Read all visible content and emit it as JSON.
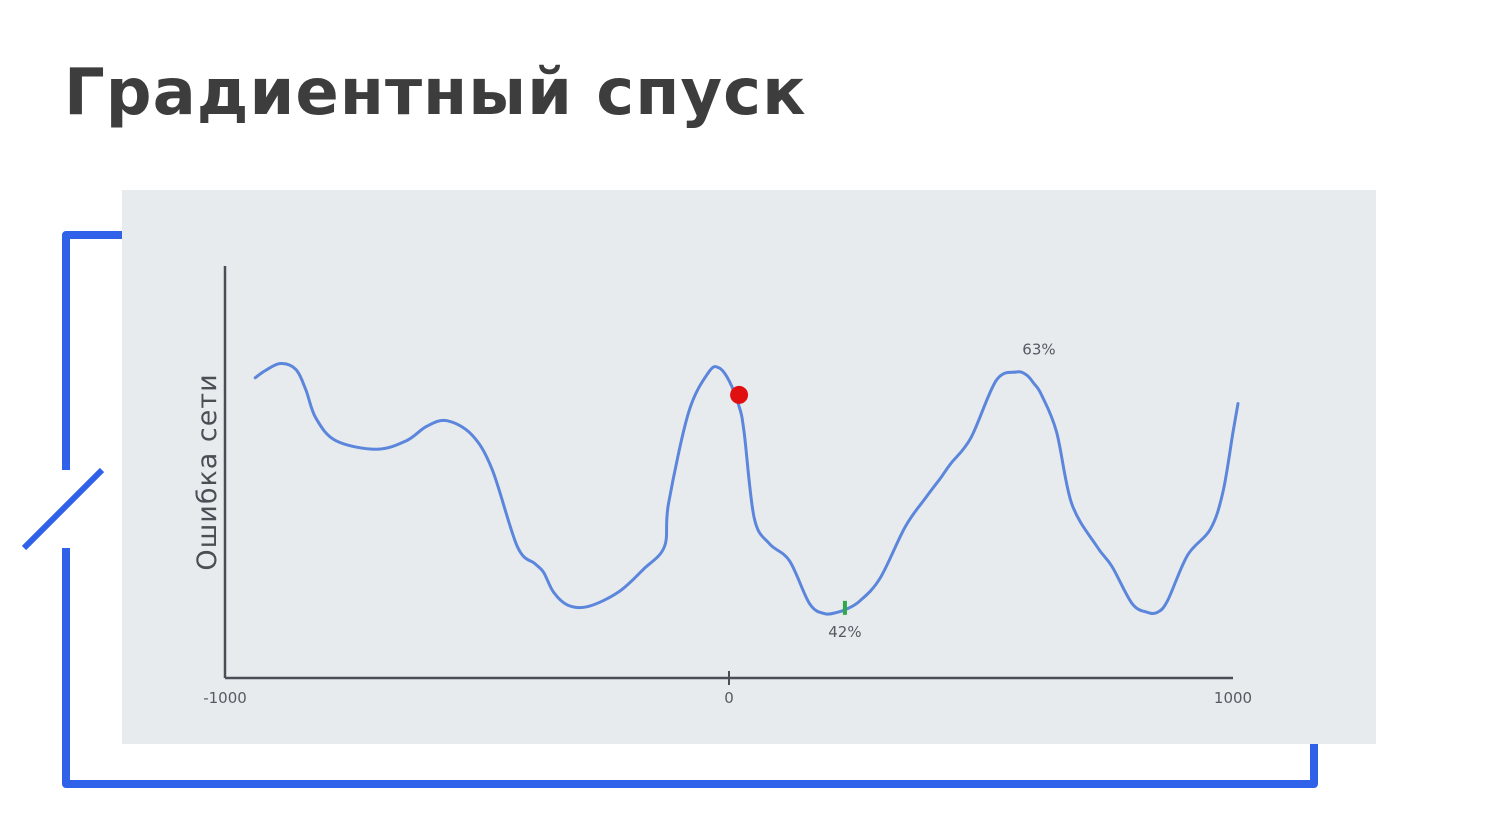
{
  "slide": {
    "title": "Градиентный спуск"
  },
  "colors": {
    "frame": "#2f62e9",
    "panel_bg": "#e8ebee",
    "curve": "#5b86dc",
    "axis": "#4a4f56",
    "current_point": "#e01010",
    "minimum_marker": "#2ea84a",
    "title_text": "#3d3d3d"
  },
  "chart_data": {
    "type": "line",
    "title": "",
    "xlabel": "",
    "ylabel": "Ошибка сети",
    "xlim": [
      -1000,
      1000
    ],
    "ylim": [
      0,
      100
    ],
    "grid": false,
    "x_ticks": [
      {
        "value": -1000,
        "label": "-1000"
      },
      {
        "value": 0,
        "label": "0"
      },
      {
        "value": 1000,
        "label": "1000"
      }
    ],
    "series": [
      {
        "x": [
          -940,
          -920,
          -890,
          -860,
          -840,
          -820,
          -780,
          -700,
          -640,
          -600,
          -560,
          -510,
          -470,
          -420,
          -385,
          -368,
          -348,
          -320,
          -280,
          -220,
          -170,
          -128,
          -120,
          -80,
          -40,
          -20,
          0,
          20,
          30,
          50,
          80,
          120,
          160,
          190,
          215,
          232,
          260,
          300,
          350,
          390,
          420,
          440,
          480,
          530,
          570,
          590,
          605,
          620,
          650,
          680,
          730,
          760,
          800,
          830,
          850,
          870,
          910,
          955,
          980,
          1000,
          1010
        ],
        "y": [
          84,
          86.5,
          89,
          87,
          80,
          70,
          62,
          59,
          62,
          67,
          69,
          64,
          52,
          25,
          19,
          16,
          9,
          4.5,
          4,
          9,
          17,
          25,
          40,
          72,
          86,
          87.5,
          83,
          74,
          65,
          35,
          26,
          20,
          5,
          1.5,
          2,
          3,
          6,
          14,
          32,
          42,
          49,
          54,
          63,
          83,
          86,
          85,
          82,
          78,
          65,
          40,
          25,
          18,
          5,
          2,
          2,
          6,
          22,
          31,
          44,
          65,
          75
        ]
      }
    ],
    "annotations": [
      {
        "x": 230,
        "y": 2.5,
        "label": "42%",
        "marker": "tick",
        "position": "below"
      },
      {
        "x": 615,
        "y": 90,
        "label": "63%",
        "marker": "none",
        "position": "above"
      }
    ],
    "current_point": {
      "x": 20,
      "y": 78
    }
  }
}
